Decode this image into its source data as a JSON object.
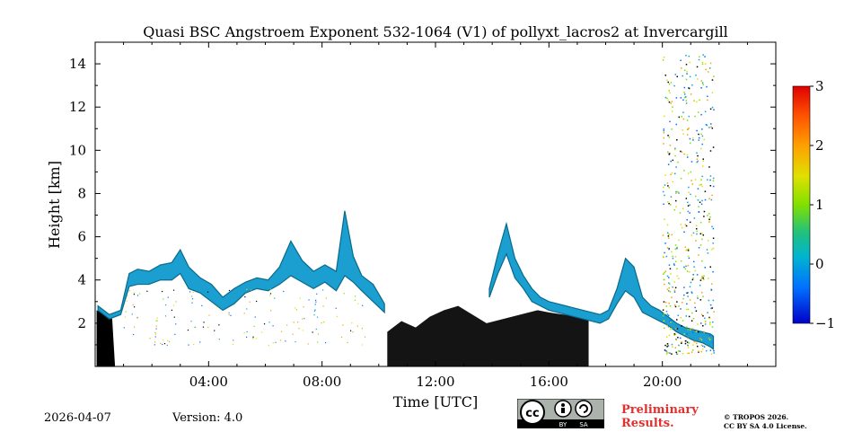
{
  "chart_data": {
    "type": "heatmap",
    "title": "Quasi BSC Angstroem Exponent 532-1064 (V1) of pollyxt_lacros2 at Invercargill",
    "xlabel": "Time [UTC]",
    "ylabel": "Height [km]",
    "xlim_hours": [
      0,
      24
    ],
    "ylim_km": [
      0,
      15
    ],
    "x_ticks": [
      {
        "hours": 4,
        "label": "04:00"
      },
      {
        "hours": 8,
        "label": "08:00"
      },
      {
        "hours": 12,
        "label": "12:00"
      },
      {
        "hours": 16,
        "label": "16:00"
      },
      {
        "hours": 20,
        "label": "20:00"
      }
    ],
    "y_ticks": [
      {
        "km": 2,
        "label": "2"
      },
      {
        "km": 4,
        "label": "4"
      },
      {
        "km": 6,
        "label": "6"
      },
      {
        "km": 8,
        "label": "8"
      },
      {
        "km": 10,
        "label": "10"
      },
      {
        "km": 12,
        "label": "12"
      },
      {
        "km": 14,
        "label": "14"
      }
    ],
    "colorbar": {
      "range": [
        -1,
        3
      ],
      "ticks": [
        {
          "value": 3,
          "label": "3"
        },
        {
          "value": 2,
          "label": "2"
        },
        {
          "value": 1,
          "label": "1"
        },
        {
          "value": 0,
          "label": "0"
        },
        {
          "value": -1,
          "label": "−1"
        }
      ],
      "colormap": "jet"
    },
    "layer_profile": {
      "hours": [
        0.1,
        0.5,
        0.9,
        1.2,
        1.5,
        1.9,
        2.3,
        2.7,
        3.0,
        3.3,
        3.7,
        4.1,
        4.5,
        4.9,
        5.3,
        5.7,
        6.1,
        6.5,
        6.9,
        7.3,
        7.7,
        8.1,
        8.5,
        8.8,
        9.1,
        9.4,
        9.8,
        10.2
      ],
      "top_km": [
        2.8,
        2.4,
        2.6,
        4.3,
        4.5,
        4.4,
        4.7,
        4.8,
        5.4,
        4.6,
        4.1,
        3.8,
        3.2,
        3.6,
        3.9,
        4.1,
        4.0,
        4.6,
        5.8,
        4.9,
        4.4,
        4.7,
        4.4,
        7.2,
        5.1,
        4.2,
        3.8,
        2.9
      ],
      "base_km": [
        2.6,
        2.2,
        2.4,
        3.7,
        3.8,
        3.8,
        4.0,
        4.0,
        4.3,
        3.6,
        3.4,
        3.0,
        2.6,
        2.9,
        3.4,
        3.6,
        3.5,
        3.8,
        4.2,
        3.9,
        3.6,
        3.9,
        3.5,
        4.2,
        3.9,
        3.5,
        3.0,
        2.5
      ]
    },
    "layer_profile_2": {
      "hours": [
        13.9,
        14.2,
        14.5,
        14.8,
        15.1,
        15.4,
        15.7,
        16.0,
        16.3,
        16.6,
        16.9,
        17.2,
        17.5,
        17.8,
        18.1,
        18.4,
        18.7,
        19.0,
        19.3,
        19.6,
        19.9,
        20.2,
        20.5,
        20.8,
        21.1,
        21.4,
        21.7,
        21.8
      ],
      "top_km": [
        3.6,
        5.2,
        6.6,
        5.0,
        4.2,
        3.6,
        3.2,
        3.0,
        2.9,
        2.8,
        2.7,
        2.6,
        2.5,
        2.4,
        2.6,
        3.6,
        5.0,
        4.6,
        3.2,
        2.8,
        2.6,
        2.3,
        2.0,
        1.8,
        1.7,
        1.6,
        1.5,
        1.4
      ],
      "base_km": [
        3.2,
        4.3,
        5.2,
        4.1,
        3.6,
        3.0,
        2.8,
        2.6,
        2.5,
        2.4,
        2.3,
        2.2,
        2.1,
        2.0,
        2.2,
        2.9,
        3.5,
        3.2,
        2.5,
        2.3,
        2.1,
        1.9,
        1.6,
        1.4,
        1.2,
        1.1,
        0.9,
        0.8
      ]
    },
    "black_region": {
      "hours": [
        10.3,
        10.8,
        11.3,
        11.8,
        12.3,
        12.8,
        13.3,
        13.8,
        15.6,
        16.0,
        16.5,
        17.0,
        17.4
      ],
      "top_km": [
        1.6,
        2.1,
        1.8,
        2.3,
        2.6,
        2.8,
        2.4,
        2.0,
        2.6,
        2.5,
        2.4,
        2.3,
        2.2
      ]
    }
  },
  "footer": {
    "date": "2026-04-07",
    "version": "Version: 4.0",
    "preliminary_line1": "Preliminary",
    "preliminary_line2": "Results.",
    "copyright_line1": "© TROPOS 2026.",
    "copyright_line2": "CC BY SA 4.0 License.",
    "badge_by": "BY",
    "badge_sa": "SA",
    "badge_cc": "cc"
  },
  "colors": {
    "layer_main": "#1a9fd0",
    "layer_dark": "#0a6a8a",
    "black_region": "#000000",
    "preliminary": "#e03030"
  }
}
